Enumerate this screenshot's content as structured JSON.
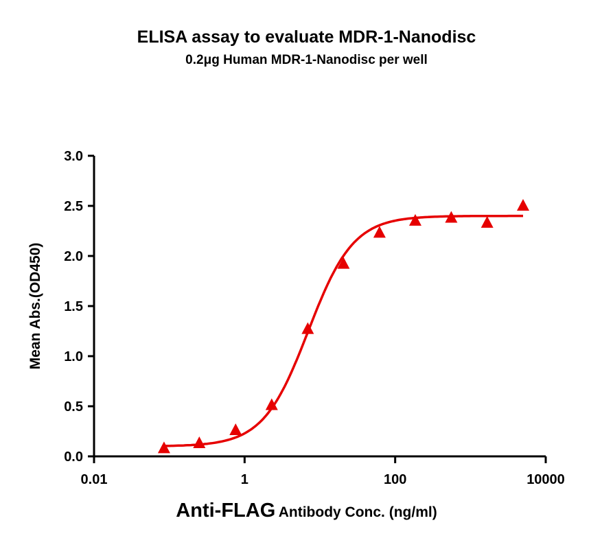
{
  "chart_data": {
    "type": "scatter",
    "title": "ELISA assay to evaluate MDR-1-Nanodisc",
    "subtitle": "0.2μg Human MDR-1-Nanodisc per well",
    "xlabel_main": "Anti-FLAG",
    "xlabel_rest": "Antibody Conc. (ng/ml)",
    "ylabel": "Mean Abs.(OD450)",
    "xscale": "log",
    "xlim": [
      0.01,
      10000
    ],
    "ylim": [
      0,
      3.0
    ],
    "xticks": [
      "0.01",
      "1",
      "100",
      "10000"
    ],
    "xtick_values": [
      0.01,
      1,
      100,
      10000
    ],
    "yticks": [
      "0.0",
      "0.5",
      "1.0",
      "1.5",
      "2.0",
      "2.5",
      "3.0"
    ],
    "ytick_values": [
      0,
      0.5,
      1.0,
      1.5,
      2.0,
      2.5,
      3.0
    ],
    "grid": false,
    "marker": "triangle",
    "color": "#e60000",
    "x": [
      0.085,
      0.25,
      0.76,
      2.29,
      6.9,
      20.6,
      62,
      185,
      556,
      1667,
      5000
    ],
    "y": [
      0.08,
      0.13,
      0.26,
      0.51,
      1.27,
      1.92,
      2.23,
      2.35,
      2.38,
      2.33,
      2.5
    ],
    "fit": {
      "model": "4PL",
      "bottom": 0.1,
      "top": 2.4,
      "ec50": 7.0,
      "hill": 1.45,
      "x_range": [
        0.085,
        5000
      ]
    }
  }
}
